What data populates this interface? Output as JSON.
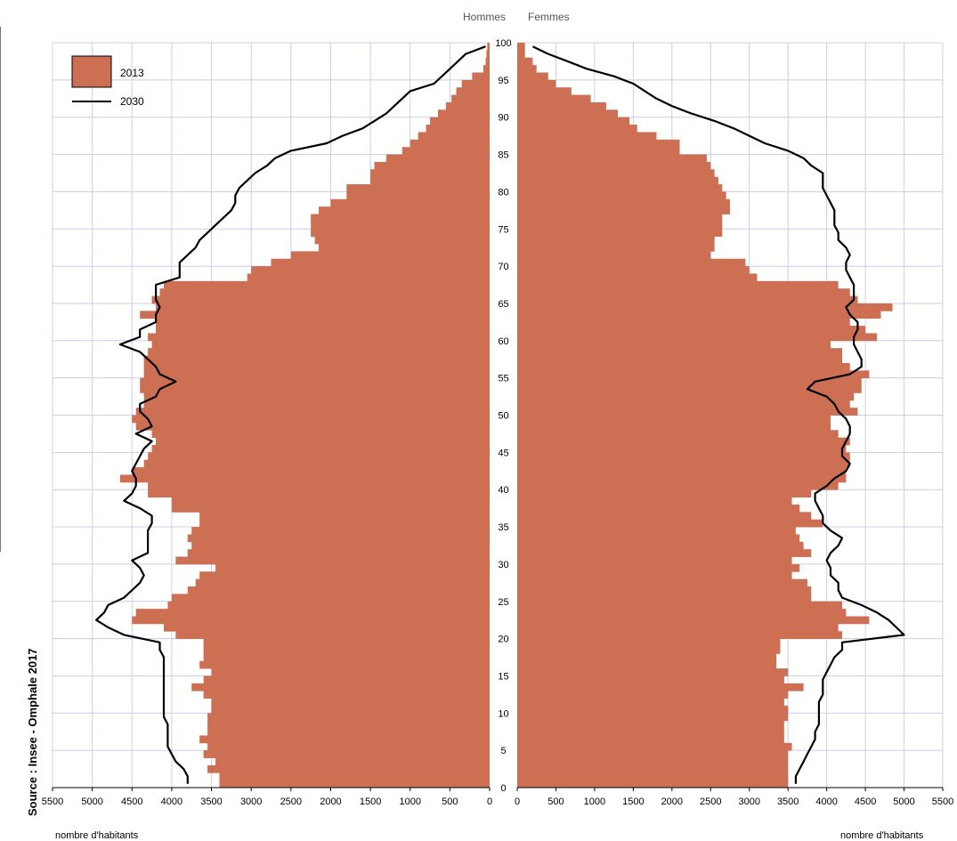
{
  "header": {
    "male_label": "Hommes",
    "female_label": "Femmes"
  },
  "source": "Source : Insee - Omphale 2017",
  "chart_data": {
    "type": "bar",
    "orientation": "horizontal",
    "subtype": "population-pyramid",
    "xlabel": "nombre d'habitants",
    "ylim": [
      0,
      100
    ],
    "xlim": [
      0,
      5500
    ],
    "x_ticks": [
      0,
      500,
      1000,
      1500,
      2000,
      2500,
      3000,
      3500,
      4000,
      4500,
      5000,
      5500
    ],
    "y_ticks": [
      0,
      5,
      10,
      15,
      20,
      25,
      30,
      35,
      40,
      45,
      50,
      55,
      60,
      65,
      70,
      75,
      80,
      85,
      90,
      95,
      100
    ],
    "grid": true,
    "legend": {
      "position": "top-left",
      "entries": [
        {
          "label": "2013",
          "kind": "bar"
        },
        {
          "label": "2030",
          "kind": "line"
        }
      ]
    },
    "colors": {
      "bar": "#cd6f53",
      "line": "#000000",
      "grid": "#ccccee"
    },
    "ages": [
      0,
      1,
      2,
      3,
      4,
      5,
      6,
      7,
      8,
      9,
      10,
      11,
      12,
      13,
      14,
      15,
      16,
      17,
      18,
      19,
      20,
      21,
      22,
      23,
      24,
      25,
      26,
      27,
      28,
      29,
      30,
      31,
      32,
      33,
      34,
      35,
      36,
      37,
      38,
      39,
      40,
      41,
      42,
      43,
      44,
      45,
      46,
      47,
      48,
      49,
      50,
      51,
      52,
      53,
      54,
      55,
      56,
      57,
      58,
      59,
      60,
      61,
      62,
      63,
      64,
      65,
      66,
      67,
      68,
      69,
      70,
      71,
      72,
      73,
      74,
      75,
      76,
      77,
      78,
      79,
      80,
      81,
      82,
      83,
      84,
      85,
      86,
      87,
      88,
      89,
      90,
      91,
      92,
      93,
      94,
      95,
      96,
      97,
      98,
      99
    ],
    "series": [
      {
        "name": "2013",
        "side": "Hommes",
        "kind": "bar",
        "values": [
          3400,
          3400,
          3550,
          3450,
          3600,
          3550,
          3650,
          3550,
          3550,
          3550,
          3500,
          3500,
          3600,
          3750,
          3600,
          3500,
          3650,
          3600,
          3600,
          3600,
          3950,
          4100,
          4500,
          4450,
          4050,
          4000,
          3800,
          3700,
          3650,
          3450,
          3950,
          3800,
          3750,
          3800,
          3750,
          3650,
          3650,
          4000,
          4000,
          4300,
          4300,
          4650,
          4500,
          4350,
          4300,
          4250,
          4200,
          4250,
          4450,
          4500,
          4450,
          4350,
          4350,
          4400,
          4400,
          4350,
          4350,
          4350,
          4300,
          4250,
          4300,
          4200,
          4200,
          4400,
          4200,
          4250,
          4150,
          4100,
          3050,
          3000,
          2750,
          2500,
          2150,
          2200,
          2250,
          2250,
          2250,
          2150,
          2000,
          1800,
          1800,
          1500,
          1500,
          1450,
          1300,
          1100,
          1000,
          900,
          800,
          750,
          650,
          550,
          480,
          420,
          350,
          220,
          80,
          50,
          40,
          30
        ]
      },
      {
        "name": "2030",
        "side": "Hommes",
        "kind": "line",
        "values": [
          3800,
          3800,
          3850,
          3950,
          4000,
          4050,
          4050,
          4050,
          4050,
          4100,
          4100,
          4100,
          4100,
          4100,
          4100,
          4100,
          4100,
          4100,
          4150,
          4150,
          4600,
          4800,
          4950,
          4850,
          4800,
          4600,
          4500,
          4400,
          4350,
          4400,
          4500,
          4300,
          4300,
          4300,
          4300,
          4250,
          4250,
          4400,
          4600,
          4500,
          4450,
          4450,
          4500,
          4450,
          4400,
          4350,
          4250,
          4450,
          4250,
          4300,
          4400,
          4400,
          4200,
          4150,
          3950,
          4150,
          4200,
          4300,
          4400,
          4650,
          4400,
          4400,
          4200,
          4200,
          4150,
          4200,
          4200,
          4200,
          3900,
          3900,
          3900,
          3800,
          3700,
          3650,
          3550,
          3450,
          3350,
          3250,
          3200,
          3200,
          3150,
          3050,
          2950,
          2800,
          2700,
          2500,
          2050,
          1850,
          1600,
          1450,
          1300,
          1200,
          1100,
          1000,
          700,
          600,
          500,
          400,
          300,
          50
        ]
      },
      {
        "name": "2013",
        "side": "Femmes",
        "kind": "bar",
        "values": [
          3500,
          3500,
          3500,
          3500,
          3500,
          3550,
          3450,
          3450,
          3450,
          3500,
          3500,
          3450,
          3500,
          3700,
          3450,
          3500,
          3350,
          3350,
          3400,
          3400,
          4200,
          4150,
          4550,
          4250,
          4200,
          3800,
          3800,
          3750,
          3550,
          3650,
          3550,
          3800,
          3700,
          3650,
          3600,
          3950,
          3800,
          3650,
          3550,
          3800,
          4150,
          4250,
          4250,
          4300,
          4300,
          4250,
          4300,
          4150,
          4050,
          4050,
          4400,
          4300,
          4350,
          4450,
          4450,
          4550,
          4300,
          4200,
          4200,
          4050,
          4650,
          4500,
          4300,
          4700,
          4850,
          4400,
          4300,
          4150,
          3100,
          3000,
          2950,
          2500,
          2550,
          2550,
          2650,
          2650,
          2650,
          2750,
          2750,
          2700,
          2650,
          2600,
          2550,
          2500,
          2450,
          2100,
          2100,
          1800,
          1550,
          1450,
          1300,
          1150,
          950,
          700,
          500,
          400,
          250,
          200,
          100,
          100
        ]
      },
      {
        "name": "2030",
        "side": "Femmes",
        "kind": "line",
        "values": [
          3600,
          3600,
          3650,
          3700,
          3750,
          3800,
          3850,
          3850,
          3900,
          3900,
          3900,
          3900,
          3950,
          3950,
          3950,
          4000,
          4050,
          4100,
          4200,
          4200,
          5000,
          4900,
          4800,
          4650,
          4450,
          4200,
          4150,
          4150,
          4050,
          4050,
          4000,
          4050,
          4150,
          4200,
          4050,
          3950,
          3950,
          3900,
          3850,
          3850,
          4000,
          4100,
          4250,
          4300,
          4200,
          4200,
          4250,
          4300,
          4300,
          4250,
          4150,
          4100,
          4000,
          3750,
          3850,
          4300,
          4450,
          4450,
          4400,
          4350,
          4350,
          4400,
          4400,
          4300,
          4250,
          4350,
          4350,
          4350,
          4300,
          4250,
          4250,
          4300,
          4250,
          4150,
          4150,
          4100,
          4100,
          4100,
          4050,
          4000,
          3950,
          3950,
          3950,
          3800,
          3700,
          3500,
          3200,
          3000,
          2800,
          2550,
          2250,
          2000,
          1800,
          1650,
          1500,
          1250,
          900,
          650,
          400,
          200
        ]
      }
    ]
  }
}
